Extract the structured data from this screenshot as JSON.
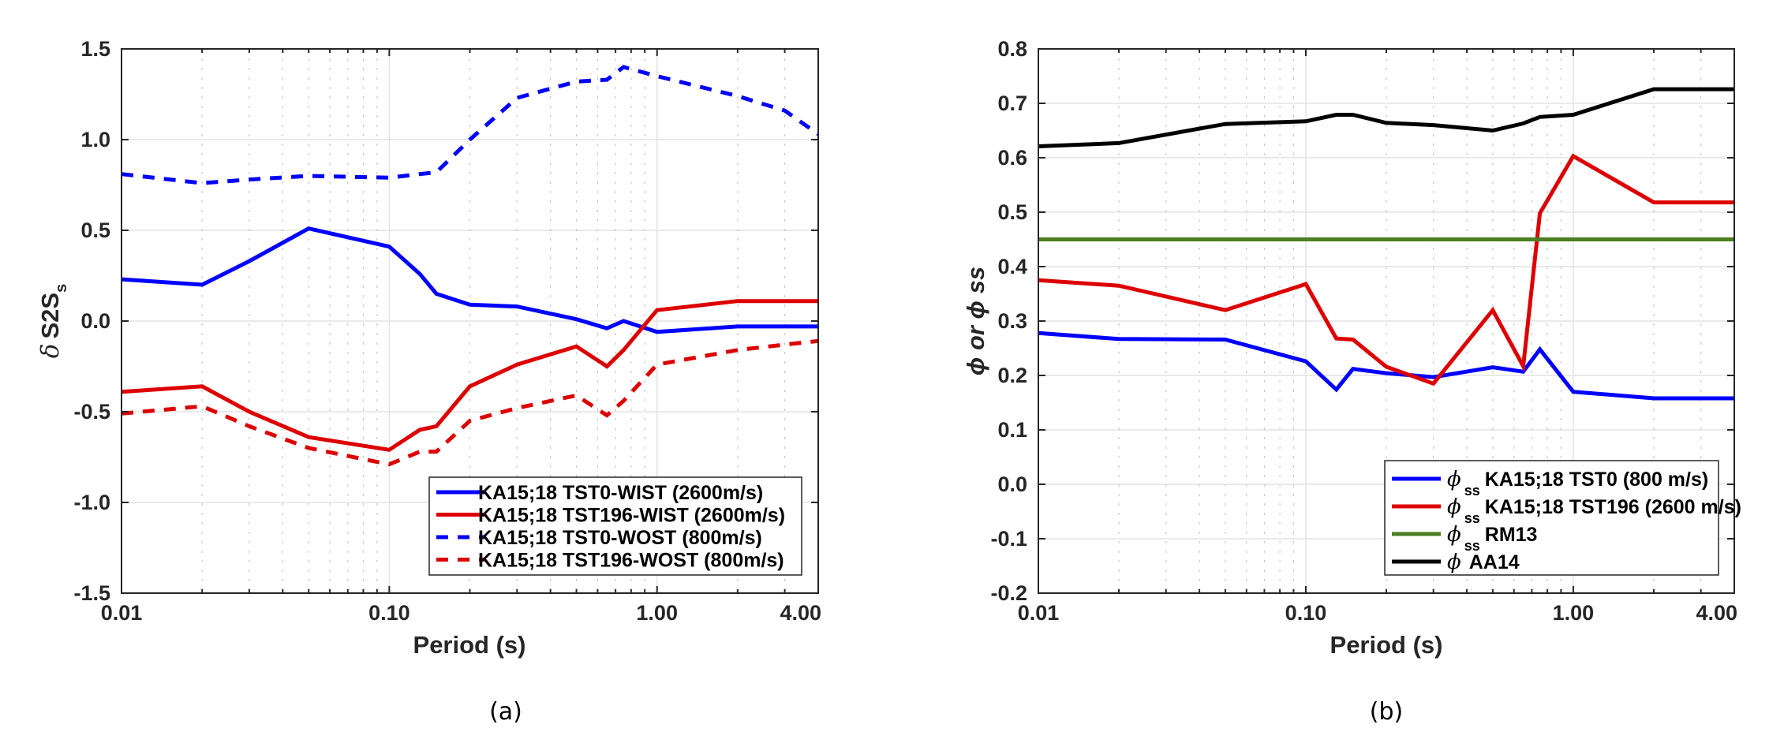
{
  "chart_data": [
    {
      "type": "line",
      "panel_label": "(a)",
      "xlabel": "Period (s)",
      "ylabel_symbol": "δ",
      "ylabel_main": "S2S",
      "ylabel_sub": "s",
      "xscale": "log",
      "xlim": [
        0.01,
        4.0
      ],
      "ylim": [
        -1.5,
        1.5
      ],
      "xticks": [
        0.01,
        0.1,
        1.0,
        4.0
      ],
      "xtick_labels": [
        "0.01",
        "0.10",
        "1.00",
        "4.00"
      ],
      "yticks": [
        -1.5,
        -1.0,
        -0.5,
        0.0,
        0.5,
        1.0,
        1.5
      ],
      "ytick_labels": [
        "-1.5",
        "-1.0",
        "-0.5",
        "0.0",
        "0.5",
        "1.0",
        "1.5"
      ],
      "grid": true,
      "legend_position": "bottom-right",
      "x": [
        0.01,
        0.02,
        0.03,
        0.05,
        0.1,
        0.13,
        0.15,
        0.2,
        0.3,
        0.5,
        0.65,
        0.75,
        1.0,
        2.0,
        3.0,
        4.0
      ],
      "series": [
        {
          "name": "KA15;18 TST0-WIST (2600m/s)",
          "color": "#0000ff",
          "dash": "solid",
          "values": [
            0.23,
            0.2,
            0.33,
            0.51,
            0.41,
            0.26,
            0.15,
            0.09,
            0.08,
            0.01,
            -0.04,
            0.0,
            -0.06,
            -0.03,
            -0.03,
            -0.03
          ]
        },
        {
          "name": "KA15;18 TST196-WIST (2600m/s)",
          "color": "#dd0000",
          "dash": "solid",
          "values": [
            -0.39,
            -0.36,
            -0.5,
            -0.64,
            -0.71,
            -0.6,
            -0.58,
            -0.36,
            -0.24,
            -0.14,
            -0.25,
            -0.16,
            0.06,
            0.11,
            0.11,
            0.11
          ]
        },
        {
          "name": "KA15;18 TST0-WOST (800m/s)",
          "color": "#0000ff",
          "dash": "dashed",
          "values": [
            0.81,
            0.76,
            0.78,
            0.8,
            0.79,
            0.81,
            0.82,
            1.0,
            1.23,
            1.32,
            1.33,
            1.4,
            1.35,
            1.24,
            1.16,
            1.03
          ]
        },
        {
          "name": "KA15;18 TST196-WOST (800m/s)",
          "color": "#dd0000",
          "dash": "dashed",
          "values": [
            -0.51,
            -0.47,
            -0.58,
            -0.7,
            -0.79,
            -0.72,
            -0.72,
            -0.55,
            -0.48,
            -0.41,
            -0.52,
            -0.44,
            -0.24,
            -0.16,
            -0.13,
            -0.11
          ]
        }
      ]
    },
    {
      "type": "line",
      "panel_label": "(b)",
      "xlabel": "Period (s)",
      "ylabel": "ϕ or ϕ ss",
      "xscale": "log",
      "xlim": [
        0.01,
        4.0
      ],
      "ylim": [
        -0.2,
        0.8
      ],
      "xticks": [
        0.01,
        0.1,
        1.0,
        4.0
      ],
      "xtick_labels": [
        "0.01",
        "0.10",
        "1.00",
        "4.00"
      ],
      "yticks": [
        -0.2,
        -0.1,
        0.0,
        0.1,
        0.2,
        0.3,
        0.4,
        0.5,
        0.6,
        0.7,
        0.8
      ],
      "ytick_labels": [
        "-0.2",
        "-0.1",
        "0.0",
        "0.1",
        "0.2",
        "0.3",
        "0.4",
        "0.5",
        "0.6",
        "0.7",
        "0.8"
      ],
      "grid": true,
      "legend_position": "bottom-right",
      "x": [
        0.01,
        0.02,
        0.05,
        0.1,
        0.13,
        0.15,
        0.2,
        0.3,
        0.5,
        0.65,
        0.75,
        1.0,
        2.0,
        4.0
      ],
      "series": [
        {
          "name": "KA15;18 TST0 (800 m/s)",
          "symbol": "ϕ",
          "sub": "ss",
          "color": "#0000ff",
          "values": [
            0.278,
            0.267,
            0.266,
            0.226,
            0.174,
            0.212,
            0.204,
            0.197,
            0.215,
            0.207,
            0.248,
            0.17,
            0.158,
            0.158
          ]
        },
        {
          "name": "KA15;18 TST196 (2600 m/s)",
          "symbol": "ϕ",
          "sub": "ss",
          "color": "#dd0000",
          "values": [
            0.375,
            0.365,
            0.32,
            0.368,
            0.268,
            0.266,
            0.216,
            0.185,
            0.32,
            0.217,
            0.498,
            0.603,
            0.518,
            0.518
          ]
        },
        {
          "name": "RM13",
          "symbol": "ϕ",
          "sub": "ss",
          "color": "#4a7f22",
          "values": [
            0.45,
            0.45,
            0.45,
            0.45,
            0.45,
            0.45,
            0.45,
            0.45,
            0.45,
            0.45,
            0.45,
            0.45,
            0.45,
            0.45
          ]
        },
        {
          "name": "AA14",
          "symbol": "ϕ",
          "sub": "",
          "color": "#000000",
          "values": [
            0.621,
            0.627,
            0.662,
            0.667,
            0.679,
            0.679,
            0.664,
            0.66,
            0.65,
            0.663,
            0.675,
            0.679,
            0.726,
            0.726
          ]
        }
      ]
    }
  ]
}
